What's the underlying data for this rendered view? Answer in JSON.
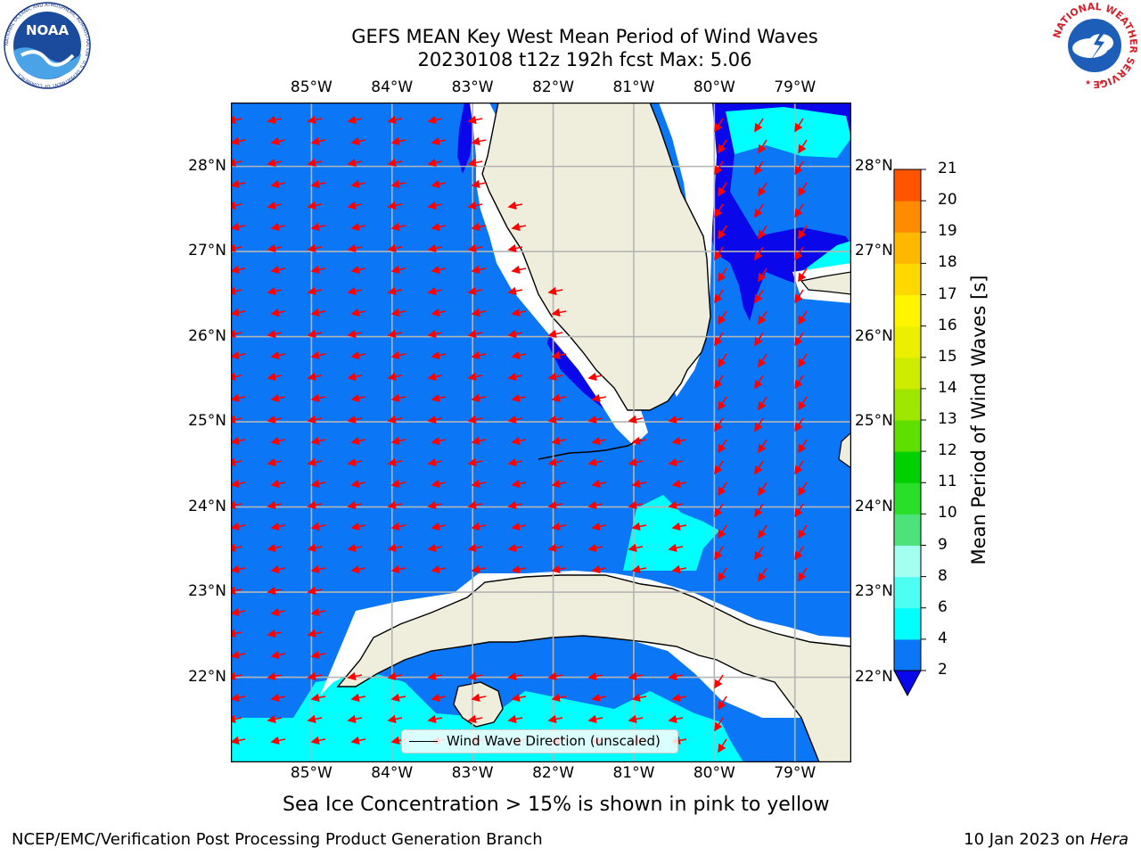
{
  "header": {
    "title_line1": "GEFS MEAN Key West Mean Period of Wind Waves",
    "title_line2": "20230108 t12z 192h fcst   Max: 5.06"
  },
  "map": {
    "lon_labels": [
      "85°W",
      "84°W",
      "83°W",
      "82°W",
      "81°W",
      "80°W",
      "79°W"
    ],
    "lat_labels": [
      "28°N",
      "27°N",
      "26°N",
      "25°N",
      "24°N",
      "23°N",
      "22°N"
    ],
    "extent": {
      "lon": [
        -86.0,
        -78.3
      ],
      "lat": [
        21.0,
        28.75
      ]
    },
    "legend_label": "Wind Wave Direction (unscaled)",
    "colors": {
      "ocean_2_4": "#0b77f6",
      "ocean_below_2": "#0a08ea",
      "ocean_4_6": "#00ffff",
      "land": "#efeddc",
      "grid": "#b5b5b5",
      "arrow": "#ff0000"
    }
  },
  "colorbar": {
    "title": "Mean Period of Wind Waves [s]",
    "levels": [
      "2",
      "4",
      "6",
      "8",
      "9",
      "10",
      "11",
      "12",
      "13",
      "14",
      "15",
      "16",
      "17",
      "18",
      "19",
      "20",
      "21"
    ],
    "colors": [
      "#0b77f6",
      "#00ffff",
      "#4dfff2",
      "#a4fff0",
      "#4de37a",
      "#2adf2a",
      "#00d000",
      "#5fdf00",
      "#9fe600",
      "#cdec00",
      "#ecef00",
      "#fff500",
      "#ffd800",
      "#ffb800",
      "#ff8b00",
      "#ff5400",
      "#ff2a00",
      "#ff0000"
    ],
    "under_color": "#0a08ea"
  },
  "footer": {
    "note": "Sea Ice Concentration > 15% is shown in pink to yellow",
    "left": "NCEP/EMC/Verification Post Processing Product Generation Branch",
    "right_date": "10 Jan 2023 on ",
    "right_host": "Hera"
  },
  "logos": {
    "noaa_text": "NOAA",
    "noaa_ring": "NATIONAL OCEANIC AND ATMOSPHERIC ADMINISTRATION · U.S. DEPARTMENT OF COMMERCE",
    "nws_ring": "NATIONAL WEATHER SERVICE"
  }
}
